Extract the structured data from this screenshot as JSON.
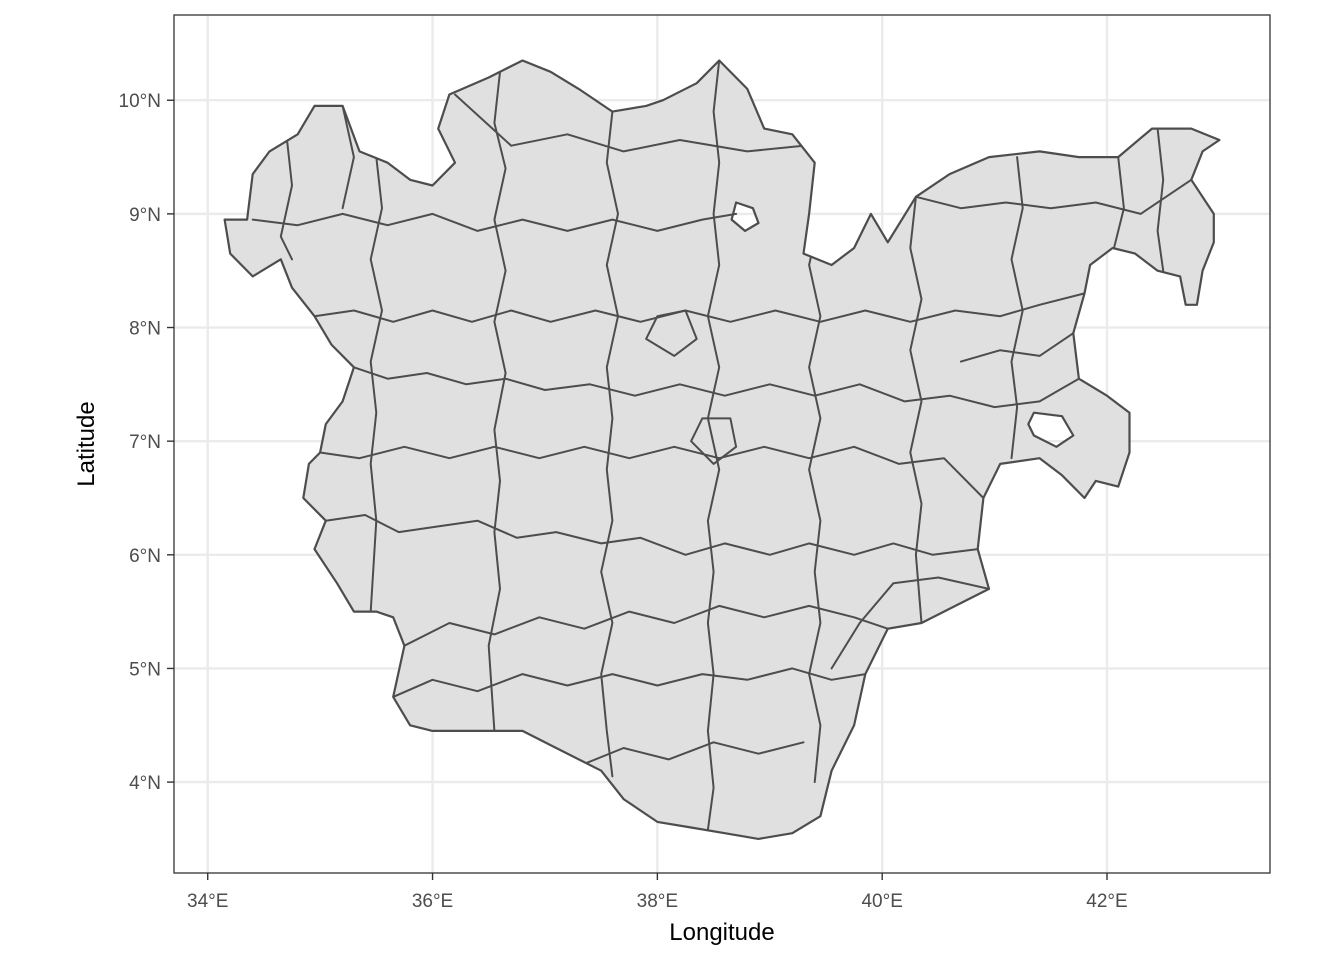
{
  "chart_data": {
    "type": "map",
    "xlabel": "Longitude",
    "ylabel": "Latitude",
    "xlim": [
      33.7,
      43.45
    ],
    "ylim": [
      3.2,
      10.75
    ],
    "x_ticks": [
      {
        "value": 34,
        "label": "34°E"
      },
      {
        "value": 36,
        "label": "36°E"
      },
      {
        "value": 38,
        "label": "38°E"
      },
      {
        "value": 40,
        "label": "40°E"
      },
      {
        "value": 42,
        "label": "42°E"
      }
    ],
    "y_ticks": [
      {
        "value": 4,
        "label": "4°N"
      },
      {
        "value": 5,
        "label": "5°N"
      },
      {
        "value": 6,
        "label": "6°N"
      },
      {
        "value": 7,
        "label": "7°N"
      },
      {
        "value": 8,
        "label": "8°N"
      },
      {
        "value": 9,
        "label": "9°N"
      },
      {
        "value": 10,
        "label": "10°N"
      }
    ],
    "grid": true,
    "region_fill": "#e0e0e0",
    "region_stroke": "#4d4d4d",
    "outline": [
      [
        34.15,
        8.95
      ],
      [
        34.2,
        8.65
      ],
      [
        34.4,
        8.45
      ],
      [
        34.65,
        8.6
      ],
      [
        34.75,
        8.35
      ],
      [
        34.95,
        8.1
      ],
      [
        35.1,
        7.85
      ],
      [
        35.3,
        7.65
      ],
      [
        35.2,
        7.35
      ],
      [
        35.05,
        7.15
      ],
      [
        35.0,
        6.9
      ],
      [
        34.9,
        6.8
      ],
      [
        34.85,
        6.5
      ],
      [
        35.05,
        6.3
      ],
      [
        34.95,
        6.05
      ],
      [
        35.15,
        5.75
      ],
      [
        35.3,
        5.5
      ],
      [
        35.5,
        5.5
      ],
      [
        35.65,
        5.45
      ],
      [
        35.75,
        5.2
      ],
      [
        35.65,
        4.75
      ],
      [
        35.8,
        4.5
      ],
      [
        36.0,
        4.45
      ],
      [
        36.5,
        4.45
      ],
      [
        36.8,
        4.45
      ],
      [
        37.1,
        4.3
      ],
      [
        37.5,
        4.1
      ],
      [
        37.7,
        3.85
      ],
      [
        38.0,
        3.65
      ],
      [
        38.3,
        3.6
      ],
      [
        38.6,
        3.55
      ],
      [
        38.9,
        3.5
      ],
      [
        39.2,
        3.55
      ],
      [
        39.45,
        3.7
      ],
      [
        39.55,
        4.1
      ],
      [
        39.75,
        4.5
      ],
      [
        39.85,
        4.95
      ],
      [
        40.05,
        5.35
      ],
      [
        40.35,
        5.4
      ],
      [
        40.65,
        5.55
      ],
      [
        40.95,
        5.7
      ],
      [
        40.85,
        6.05
      ],
      [
        40.9,
        6.5
      ],
      [
        41.05,
        6.8
      ],
      [
        41.4,
        6.85
      ],
      [
        41.6,
        6.7
      ],
      [
        41.8,
        6.5
      ],
      [
        41.9,
        6.65
      ],
      [
        42.1,
        6.6
      ],
      [
        42.2,
        6.9
      ],
      [
        42.2,
        7.25
      ],
      [
        42.0,
        7.4
      ],
      [
        41.75,
        7.55
      ],
      [
        41.7,
        7.95
      ],
      [
        41.8,
        8.3
      ],
      [
        41.85,
        8.55
      ],
      [
        42.05,
        8.7
      ],
      [
        42.25,
        8.65
      ],
      [
        42.45,
        8.5
      ],
      [
        42.65,
        8.45
      ],
      [
        42.7,
        8.2
      ],
      [
        42.8,
        8.2
      ],
      [
        42.85,
        8.5
      ],
      [
        42.95,
        8.75
      ],
      [
        42.95,
        9.0
      ],
      [
        42.75,
        9.3
      ],
      [
        42.85,
        9.55
      ],
      [
        43.0,
        9.65
      ],
      [
        42.75,
        9.75
      ],
      [
        42.4,
        9.75
      ],
      [
        42.1,
        9.5
      ],
      [
        41.75,
        9.5
      ],
      [
        41.4,
        9.55
      ],
      [
        40.95,
        9.5
      ],
      [
        40.6,
        9.35
      ],
      [
        40.3,
        9.15
      ],
      [
        40.05,
        8.75
      ],
      [
        39.9,
        9.0
      ],
      [
        39.75,
        8.7
      ],
      [
        39.55,
        8.55
      ],
      [
        39.3,
        8.65
      ],
      [
        39.35,
        9.0
      ],
      [
        39.4,
        9.45
      ],
      [
        39.2,
        9.7
      ],
      [
        38.95,
        9.75
      ],
      [
        38.8,
        10.1
      ],
      [
        38.55,
        10.35
      ],
      [
        38.35,
        10.15
      ],
      [
        38.05,
        10.0
      ],
      [
        37.9,
        9.95
      ],
      [
        37.6,
        9.9
      ],
      [
        37.3,
        10.1
      ],
      [
        37.05,
        10.25
      ],
      [
        36.8,
        10.35
      ],
      [
        36.5,
        10.2
      ],
      [
        36.15,
        10.05
      ],
      [
        36.05,
        9.75
      ],
      [
        36.2,
        9.45
      ],
      [
        36.0,
        9.25
      ],
      [
        35.8,
        9.3
      ],
      [
        35.6,
        9.45
      ],
      [
        35.35,
        9.55
      ],
      [
        35.2,
        9.95
      ],
      [
        34.95,
        9.95
      ],
      [
        34.8,
        9.7
      ],
      [
        34.55,
        9.55
      ],
      [
        34.4,
        9.35
      ],
      [
        34.35,
        8.95
      ]
    ],
    "holes": [
      [
        [
          38.7,
          9.1
        ],
        [
          38.85,
          9.05
        ],
        [
          38.9,
          8.92
        ],
        [
          38.78,
          8.85
        ],
        [
          38.66,
          8.95
        ]
      ],
      [
        [
          41.35,
          7.25
        ],
        [
          41.6,
          7.22
        ],
        [
          41.7,
          7.05
        ],
        [
          41.55,
          6.95
        ],
        [
          41.35,
          7.05
        ],
        [
          41.3,
          7.15
        ]
      ]
    ],
    "boundaries": [
      [
        [
          35.05,
          6.3
        ],
        [
          35.4,
          6.35
        ],
        [
          35.7,
          6.2
        ],
        [
          36.05,
          6.25
        ],
        [
          36.4,
          6.3
        ],
        [
          36.75,
          6.15
        ],
        [
          37.1,
          6.2
        ],
        [
          37.5,
          6.1
        ],
        [
          37.85,
          6.15
        ],
        [
          38.25,
          6.0
        ],
        [
          38.6,
          6.1
        ],
        [
          39.0,
          6.0
        ],
        [
          39.35,
          6.1
        ],
        [
          39.75,
          6.0
        ],
        [
          40.1,
          6.1
        ],
        [
          40.45,
          6.0
        ],
        [
          40.85,
          6.05
        ]
      ],
      [
        [
          35.3,
          7.65
        ],
        [
          35.6,
          7.55
        ],
        [
          35.95,
          7.6
        ],
        [
          36.3,
          7.5
        ],
        [
          36.65,
          7.55
        ],
        [
          37.0,
          7.45
        ],
        [
          37.4,
          7.5
        ],
        [
          37.8,
          7.4
        ],
        [
          38.2,
          7.5
        ],
        [
          38.6,
          7.4
        ],
        [
          39.0,
          7.5
        ],
        [
          39.4,
          7.4
        ],
        [
          39.8,
          7.5
        ],
        [
          40.2,
          7.35
        ],
        [
          40.6,
          7.4
        ],
        [
          41.0,
          7.3
        ],
        [
          41.4,
          7.35
        ],
        [
          41.75,
          7.55
        ]
      ],
      [
        [
          34.95,
          8.1
        ],
        [
          35.3,
          8.15
        ],
        [
          35.65,
          8.05
        ],
        [
          36.0,
          8.15
        ],
        [
          36.35,
          8.05
        ],
        [
          36.7,
          8.15
        ],
        [
          37.05,
          8.05
        ],
        [
          37.45,
          8.15
        ],
        [
          37.85,
          8.05
        ],
        [
          38.25,
          8.15
        ],
        [
          38.65,
          8.05
        ],
        [
          39.05,
          8.15
        ],
        [
          39.45,
          8.05
        ],
        [
          39.85,
          8.15
        ],
        [
          40.25,
          8.05
        ],
        [
          40.65,
          8.15
        ],
        [
          41.05,
          8.1
        ],
        [
          41.4,
          8.2
        ],
        [
          41.8,
          8.3
        ]
      ],
      [
        [
          34.4,
          8.95
        ],
        [
          34.8,
          8.9
        ],
        [
          35.2,
          9.0
        ],
        [
          35.6,
          8.9
        ],
        [
          36.0,
          9.0
        ],
        [
          36.4,
          8.85
        ],
        [
          36.8,
          8.95
        ],
        [
          37.2,
          8.85
        ],
        [
          37.6,
          8.95
        ],
        [
          38.0,
          8.85
        ],
        [
          38.4,
          8.95
        ],
        [
          38.7,
          9.0
        ]
      ],
      [
        [
          39.35,
          9.0
        ],
        [
          39.7,
          8.85
        ],
        [
          39.9,
          9.0
        ]
      ],
      [
        [
          40.3,
          9.15
        ],
        [
          40.7,
          9.05
        ],
        [
          41.1,
          9.1
        ],
        [
          41.5,
          9.05
        ],
        [
          41.9,
          9.1
        ],
        [
          42.3,
          9.0
        ],
        [
          42.75,
          9.3
        ]
      ],
      [
        [
          35.65,
          4.75
        ],
        [
          36.0,
          4.9
        ],
        [
          36.4,
          4.8
        ],
        [
          36.8,
          4.95
        ],
        [
          37.2,
          4.85
        ],
        [
          37.6,
          4.95
        ],
        [
          38.0,
          4.85
        ],
        [
          38.4,
          4.95
        ],
        [
          38.8,
          4.9
        ],
        [
          39.2,
          5.0
        ],
        [
          39.55,
          4.9
        ],
        [
          39.85,
          4.95
        ]
      ],
      [
        [
          36.6,
          10.25
        ],
        [
          36.55,
          9.8
        ],
        [
          36.65,
          9.4
        ],
        [
          36.55,
          8.95
        ],
        [
          36.65,
          8.5
        ],
        [
          36.55,
          8.05
        ],
        [
          36.65,
          7.6
        ],
        [
          36.55,
          7.1
        ],
        [
          36.6,
          6.65
        ],
        [
          36.55,
          6.2
        ],
        [
          36.6,
          5.7
        ],
        [
          36.5,
          5.2
        ],
        [
          36.55,
          4.45
        ]
      ],
      [
        [
          37.6,
          9.9
        ],
        [
          37.55,
          9.45
        ],
        [
          37.65,
          9.0
        ],
        [
          37.55,
          8.55
        ],
        [
          37.65,
          8.1
        ],
        [
          37.55,
          7.65
        ],
        [
          37.6,
          7.2
        ],
        [
          37.55,
          6.75
        ],
        [
          37.6,
          6.3
        ],
        [
          37.5,
          5.85
        ],
        [
          37.6,
          5.4
        ],
        [
          37.5,
          4.95
        ],
        [
          37.55,
          4.45
        ],
        [
          37.6,
          4.05
        ]
      ],
      [
        [
          38.55,
          10.35
        ],
        [
          38.5,
          9.9
        ],
        [
          38.55,
          9.45
        ],
        [
          38.5,
          9.0
        ],
        [
          38.55,
          8.55
        ],
        [
          38.45,
          8.1
        ],
        [
          38.55,
          7.65
        ],
        [
          38.45,
          7.2
        ],
        [
          38.55,
          6.75
        ],
        [
          38.45,
          6.3
        ],
        [
          38.5,
          5.85
        ],
        [
          38.45,
          5.4
        ],
        [
          38.5,
          4.95
        ],
        [
          38.45,
          4.45
        ],
        [
          38.5,
          3.95
        ],
        [
          38.45,
          3.58
        ]
      ],
      [
        [
          39.4,
          9.45
        ],
        [
          39.45,
          9.0
        ],
        [
          39.35,
          8.55
        ],
        [
          39.45,
          8.1
        ],
        [
          39.35,
          7.65
        ],
        [
          39.45,
          7.2
        ],
        [
          39.35,
          6.75
        ],
        [
          39.45,
          6.3
        ],
        [
          39.4,
          5.85
        ],
        [
          39.45,
          5.4
        ],
        [
          39.35,
          4.95
        ],
        [
          39.45,
          4.5
        ],
        [
          39.4,
          4.0
        ]
      ],
      [
        [
          40.3,
          9.15
        ],
        [
          40.25,
          8.7
        ],
        [
          40.35,
          8.25
        ],
        [
          40.25,
          7.8
        ],
        [
          40.35,
          7.35
        ],
        [
          40.25,
          6.9
        ],
        [
          40.35,
          6.45
        ],
        [
          40.3,
          6.0
        ],
        [
          40.35,
          5.4
        ]
      ],
      [
        [
          41.2,
          9.5
        ],
        [
          41.25,
          9.05
        ],
        [
          41.15,
          8.6
        ],
        [
          41.25,
          8.15
        ],
        [
          41.15,
          7.7
        ],
        [
          41.2,
          7.3
        ],
        [
          41.15,
          6.85
        ]
      ],
      [
        [
          35.5,
          9.5
        ],
        [
          35.55,
          9.05
        ],
        [
          35.45,
          8.6
        ],
        [
          35.55,
          8.15
        ],
        [
          35.45,
          7.7
        ],
        [
          35.5,
          7.25
        ],
        [
          35.45,
          6.8
        ],
        [
          35.5,
          6.3
        ],
        [
          35.45,
          5.5
        ]
      ],
      [
        [
          42.1,
          9.5
        ],
        [
          42.15,
          9.05
        ],
        [
          42.05,
          8.65
        ]
      ],
      [
        [
          36.2,
          10.05
        ],
        [
          36.7,
          9.6
        ],
        [
          37.2,
          9.7
        ],
        [
          37.7,
          9.55
        ],
        [
          38.2,
          9.65
        ],
        [
          38.8,
          9.55
        ],
        [
          39.3,
          9.6
        ]
      ],
      [
        [
          38.3,
          7.0
        ],
        [
          38.5,
          6.8
        ],
        [
          38.7,
          6.95
        ],
        [
          38.65,
          7.2
        ],
        [
          38.4,
          7.2
        ],
        [
          38.3,
          7.0
        ]
      ],
      [
        [
          37.9,
          7.9
        ],
        [
          38.15,
          7.75
        ],
        [
          38.35,
          7.9
        ],
        [
          38.25,
          8.15
        ],
        [
          38.0,
          8.1
        ],
        [
          37.9,
          7.9
        ]
      ],
      [
        [
          36.85,
          3.95
        ],
        [
          37.2,
          4.1
        ],
        [
          37.7,
          4.3
        ],
        [
          38.1,
          4.2
        ],
        [
          38.5,
          4.35
        ],
        [
          38.9,
          4.25
        ],
        [
          39.3,
          4.35
        ]
      ],
      [
        [
          35.75,
          5.2
        ],
        [
          36.15,
          5.4
        ],
        [
          36.55,
          5.3
        ],
        [
          36.95,
          5.45
        ],
        [
          37.35,
          5.35
        ],
        [
          37.75,
          5.5
        ],
        [
          38.15,
          5.4
        ],
        [
          38.55,
          5.55
        ],
        [
          38.95,
          5.45
        ],
        [
          39.35,
          5.55
        ],
        [
          39.75,
          5.45
        ],
        [
          40.05,
          5.35
        ]
      ],
      [
        [
          35.0,
          6.9
        ],
        [
          35.35,
          6.85
        ],
        [
          35.75,
          6.95
        ],
        [
          36.15,
          6.85
        ],
        [
          36.55,
          6.95
        ],
        [
          36.95,
          6.85
        ],
        [
          37.35,
          6.95
        ],
        [
          37.75,
          6.85
        ],
        [
          38.15,
          6.95
        ],
        [
          38.55,
          6.85
        ],
        [
          38.95,
          6.95
        ],
        [
          39.35,
          6.85
        ],
        [
          39.75,
          6.95
        ],
        [
          40.15,
          6.8
        ],
        [
          40.55,
          6.85
        ],
        [
          40.9,
          6.5
        ]
      ],
      [
        [
          35.2,
          9.95
        ],
        [
          35.3,
          9.5
        ],
        [
          35.2,
          9.05
        ]
      ],
      [
        [
          34.7,
          9.7
        ],
        [
          34.75,
          9.25
        ],
        [
          34.65,
          8.8
        ],
        [
          34.75,
          8.6
        ]
      ],
      [
        [
          41.7,
          7.95
        ],
        [
          41.4,
          7.75
        ],
        [
          41.05,
          7.8
        ],
        [
          40.7,
          7.7
        ]
      ],
      [
        [
          39.55,
          5.0
        ],
        [
          39.8,
          5.4
        ],
        [
          40.1,
          5.75
        ],
        [
          40.5,
          5.8
        ],
        [
          40.95,
          5.7
        ]
      ],
      [
        [
          42.45,
          9.75
        ],
        [
          42.5,
          9.3
        ],
        [
          42.45,
          8.85
        ],
        [
          42.5,
          8.5
        ]
      ]
    ]
  }
}
